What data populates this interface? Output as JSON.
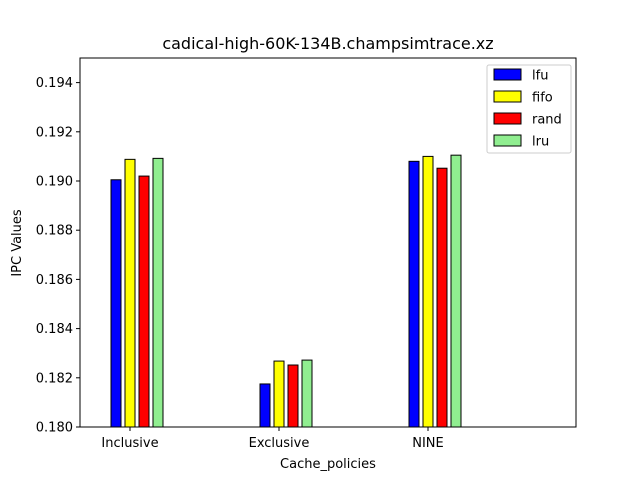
{
  "chart_data": {
    "type": "bar",
    "title": "cadical-high-60K-134B.champsimtrace.xz",
    "xlabel": "Cache_policies",
    "ylabel": "IPC Values",
    "categories": [
      "Inclusive",
      "Exclusive",
      "NINE"
    ],
    "ylim": [
      0.18,
      0.195
    ],
    "yticks": [
      "0.180",
      "0.182",
      "0.184",
      "0.186",
      "0.188",
      "0.190",
      "0.192",
      "0.194"
    ],
    "grid": false,
    "legend_position": "top-right",
    "series": [
      {
        "name": "lfu",
        "color": "#0000ff",
        "values": [
          0.19005,
          0.18175,
          0.1908
        ]
      },
      {
        "name": "fifo",
        "color": "#ffff00",
        "values": [
          0.19088,
          0.18268,
          0.191
        ]
      },
      {
        "name": "rand",
        "color": "#ff0000",
        "values": [
          0.1902,
          0.18252,
          0.19052
        ]
      },
      {
        "name": "lru",
        "color": "#90ee90",
        "values": [
          0.19092,
          0.18272,
          0.19105
        ]
      }
    ]
  }
}
